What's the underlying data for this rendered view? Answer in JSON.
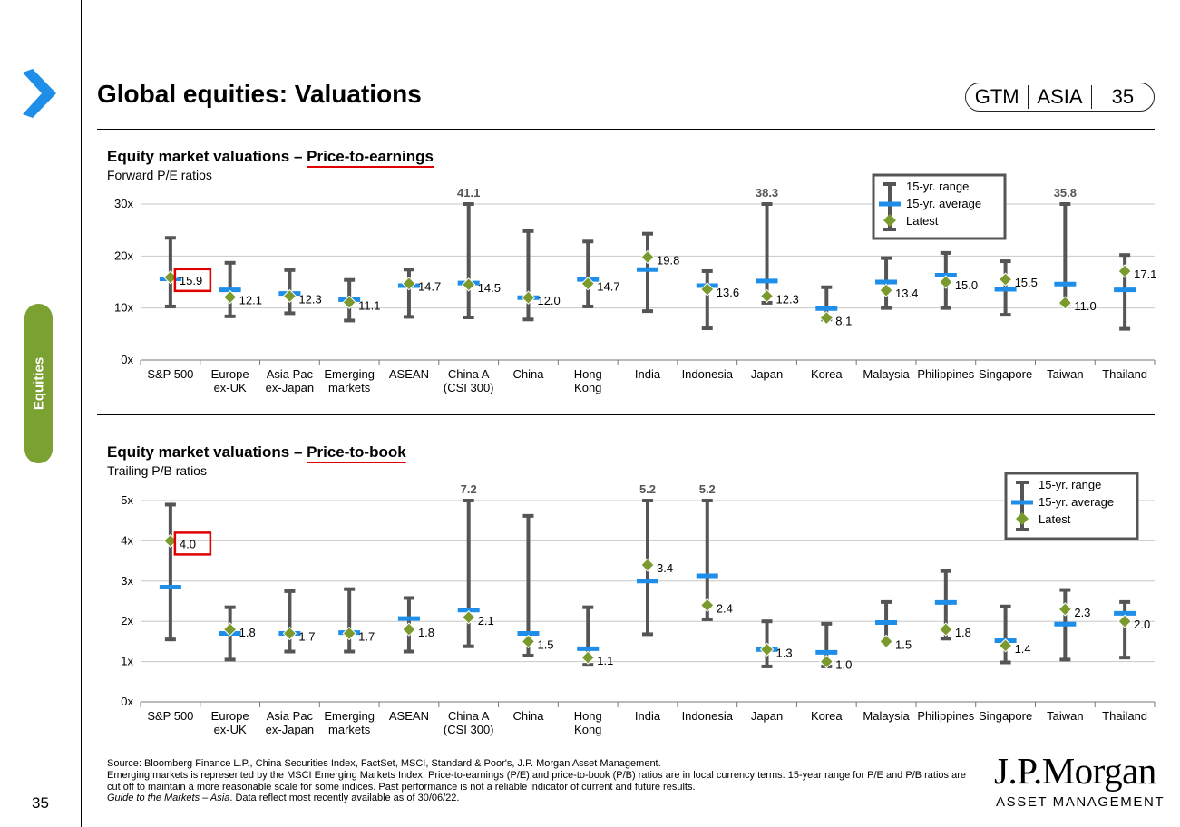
{
  "header": {
    "title": "Global equities: Valuations",
    "badge": [
      "GTM",
      "ASIA",
      "35"
    ]
  },
  "sidebar": {
    "section": "Equities",
    "page_number": "35"
  },
  "colors": {
    "range": "#555555",
    "average": "#1e8ee8",
    "latest": "#7a9a2e",
    "highlight": "#e00000",
    "tab": "#7aa131"
  },
  "chart_data": [
    {
      "type": "range",
      "title_prefix": "Equity market valuations – ",
      "title_emph": "Price-to-earnings",
      "subtitle": "Forward P/E ratios",
      "ylim": [
        0,
        30
      ],
      "yticks": [
        "0x",
        "10x",
        "20x",
        "30x"
      ],
      "legend": [
        "15-yr. range",
        "15-yr. average",
        "Latest"
      ],
      "categories": [
        "S&P 500",
        "Europe\nex-UK",
        "Asia Pac\nex-Japan",
        "Emerging\nmarkets",
        "ASEAN",
        "China A\n(CSI 300)",
        "China",
        "Hong\nKong",
        "India",
        "Indonesia",
        "Japan",
        "Korea",
        "Malaysia",
        "Philippines",
        "Singapore",
        "Taiwan",
        "Thailand"
      ],
      "range_low": [
        10.3,
        8.4,
        9.0,
        7.6,
        8.3,
        8.2,
        7.8,
        10.3,
        9.4,
        6.1,
        11.0,
        7.8,
        10.0,
        10.0,
        8.7,
        10.9,
        6.0
      ],
      "range_high": [
        23.5,
        18.7,
        17.3,
        15.4,
        17.4,
        41.1,
        24.8,
        22.8,
        24.3,
        17.1,
        38.3,
        14.0,
        19.6,
        20.6,
        19.0,
        35.8,
        20.2
      ],
      "average": [
        15.6,
        13.5,
        12.8,
        11.6,
        14.3,
        14.8,
        12.0,
        15.5,
        17.4,
        14.3,
        15.2,
        9.9,
        15.0,
        16.3,
        13.6,
        14.6,
        13.5
      ],
      "latest": [
        15.9,
        12.1,
        12.3,
        11.1,
        14.7,
        14.5,
        12.0,
        14.7,
        19.8,
        13.6,
        12.3,
        8.1,
        13.4,
        15.0,
        15.5,
        11.0,
        17.1
      ],
      "latest_labels": [
        "15.9",
        "12.1",
        "12.3",
        "11.1",
        "14.7",
        "14.5",
        "12.0",
        "14.7",
        "19.8",
        "13.6",
        "12.3",
        "8.1",
        "13.4",
        "15.0",
        "15.5",
        "11.0",
        "17.1"
      ],
      "capped_labels": [
        "",
        "",
        "",
        "",
        "",
        "41.1",
        "",
        "",
        "",
        "",
        "38.3",
        "",
        "",
        "",
        "",
        "35.8",
        ""
      ],
      "highlight_index": 0
    },
    {
      "type": "range",
      "title_prefix": "Equity market valuations – ",
      "title_emph": "Price-to-book",
      "subtitle": "Trailing P/B ratios",
      "ylim": [
        0,
        5
      ],
      "yticks": [
        "0x",
        "1x",
        "2x",
        "3x",
        "4x",
        "5x"
      ],
      "legend": [
        "15-yr. range",
        "15-yr. average",
        "Latest"
      ],
      "categories": [
        "S&P 500",
        "Europe\nex-UK",
        "Asia Pac\nex-Japan",
        "Emerging\nmarkets",
        "ASEAN",
        "China A\n(CSI 300)",
        "China",
        "Hong\nKong",
        "India",
        "Indonesia",
        "Japan",
        "Korea",
        "Malaysia",
        "Philippines",
        "Singapore",
        "Taiwan",
        "Thailand"
      ],
      "range_low": [
        1.55,
        1.05,
        1.25,
        1.25,
        1.25,
        1.38,
        1.15,
        0.92,
        1.68,
        2.05,
        0.88,
        0.88,
        1.5,
        1.57,
        0.98,
        1.05,
        1.1
      ],
      "range_high": [
        4.9,
        2.35,
        2.75,
        2.8,
        2.58,
        7.2,
        4.62,
        2.35,
        5.2,
        5.2,
        2.0,
        1.94,
        2.48,
        3.25,
        2.37,
        2.78,
        2.48
      ],
      "average": [
        2.85,
        1.7,
        1.7,
        1.72,
        2.07,
        2.28,
        1.7,
        1.32,
        3.0,
        3.13,
        1.3,
        1.23,
        1.97,
        2.47,
        1.52,
        1.93,
        2.2
      ],
      "latest": [
        4.0,
        1.8,
        1.7,
        1.7,
        1.8,
        2.1,
        1.5,
        1.1,
        3.4,
        2.4,
        1.3,
        1.0,
        1.5,
        1.8,
        1.4,
        2.3,
        2.0
      ],
      "latest_labels": [
        "4.0",
        "1.8",
        "1.7",
        "1.7",
        "1.8",
        "2.1",
        "1.5",
        "1.1",
        "3.4",
        "2.4",
        "1.3",
        "1.0",
        "1.5",
        "1.8",
        "1.4",
        "2.3",
        "2.0"
      ],
      "capped_labels": [
        "",
        "",
        "",
        "",
        "",
        "7.2",
        "",
        "",
        "5.2",
        "5.2",
        "",
        "",
        "",
        "",
        "",
        "",
        ""
      ],
      "highlight_index": 0
    }
  ],
  "footer": {
    "line1": "Source: Bloomberg Finance L.P., China Securities Index, FactSet, MSCI, Standard & Poor's, J.P. Morgan Asset Management.",
    "line2": "Emerging markets is represented by the MSCI Emerging Markets Index. Price-to-earnings (P/E) and price-to-book (P/B) ratios are in local currency terms. 15-year range for P/E and P/B ratios are cut off to maintain a more reasonable scale for some indices. Past performance is not a reliable indicator of current and future results.",
    "line3_italic": "Guide to the Markets – Asia",
    "line3_rest": ". Data reflect most recently available as of 30/06/22."
  },
  "logo": {
    "name": "J.P.Morgan",
    "sub": "ASSET MANAGEMENT"
  }
}
